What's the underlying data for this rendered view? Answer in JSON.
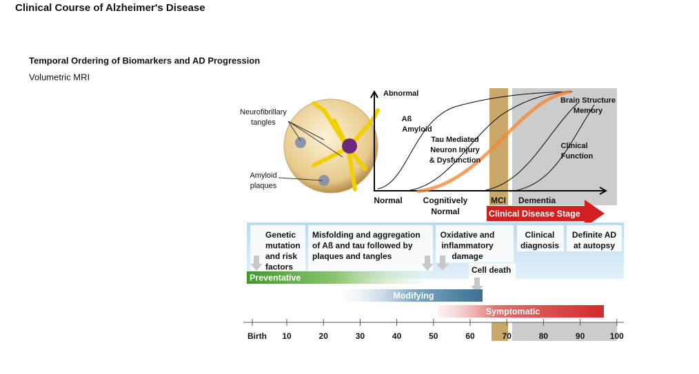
{
  "header": {
    "title": "Clinical Course of Alzheimer's Disease",
    "subtitle": "Temporal Ordering of Biomarkers and AD Progression",
    "caption": "Volumetric MRI"
  },
  "illustration": {
    "tangles": [
      "Neurofibrillary",
      "tangles"
    ],
    "plaques": [
      "Amyloid",
      "plaques"
    ]
  },
  "graph": {
    "y_label": "Abnormal",
    "curves": [
      {
        "label": [
          "Aß",
          "Amyloid"
        ]
      },
      {
        "label": [
          "Tau Mediated",
          "Neuron Injury",
          "& Dysfunction"
        ]
      },
      {
        "label": [
          "Brain Structure"
        ]
      },
      {
        "label": [
          "Memory"
        ]
      },
      {
        "label": [
          "Clinical",
          "Function"
        ]
      }
    ],
    "stages": {
      "normal": "Normal",
      "cognitively_normal": [
        "Cognitively",
        "Normal"
      ],
      "mci": "MCI",
      "dementia": "Dementia"
    },
    "arrow": "Clinical Disease Stage"
  },
  "events": [
    {
      "lines": [
        "Genetic",
        "mutation",
        "and risk",
        "factors"
      ]
    },
    {
      "lines": [
        "Misfolding and aggregation",
        "of Aß and tau followed by",
        "plaques and tangles"
      ]
    },
    {
      "lines": [
        "Oxidative and",
        "inflammatory",
        "damage"
      ]
    },
    {
      "lines": [
        "Clinical",
        "diagnosis"
      ]
    },
    {
      "lines": [
        "Definite AD",
        "at autopsy"
      ]
    },
    {
      "lines": [
        "Cell death"
      ]
    }
  ],
  "treatments": [
    "Preventative",
    "Modifying",
    "Symptomatic"
  ],
  "timeline": [
    "Birth",
    "10",
    "20",
    "30",
    "40",
    "50",
    "60",
    "70",
    "80",
    "90",
    "100"
  ]
}
